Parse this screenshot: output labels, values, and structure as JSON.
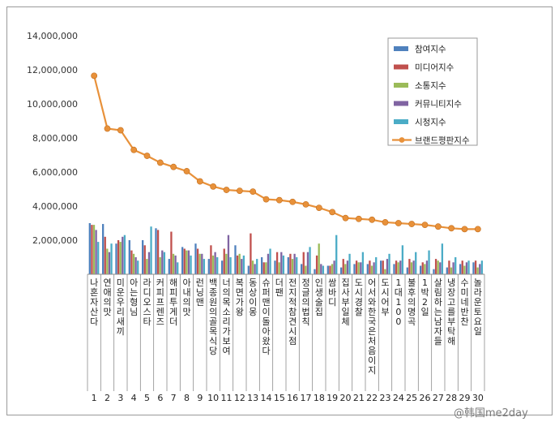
{
  "chart_data": {
    "type": "bar",
    "ylim": [
      0,
      14000000
    ],
    "y_ticks": [
      "14,000,000",
      "12,000,000",
      "10,000,000",
      "8,000,000",
      "6,000,000",
      "4,000,000",
      "2,000,000"
    ],
    "grid": false,
    "legend_position": "top-right",
    "indices": [
      "1",
      "2",
      "3",
      "4",
      "5",
      "6",
      "7",
      "8",
      "9",
      "10",
      "11",
      "12",
      "13",
      "14",
      "15",
      "16",
      "17",
      "18",
      "19",
      "20",
      "21",
      "22",
      "23",
      "24",
      "25",
      "26",
      "27",
      "28",
      "29",
      "30"
    ],
    "categories": [
      "나 혼자 산다",
      "연애의 맛",
      "미운 우리 새끼",
      "아는 형님",
      "라디오스타",
      "커피프렌즈",
      "해피투게더",
      "아내의 맛",
      "런닝맨",
      "백종원의 골목식당",
      "너의 목소리가 보여",
      "복면가왕",
      "동상이몽",
      "슈퍼맨이 돌아왔다",
      "더 팬",
      "전지적 참견 시점",
      "정글의 법칙",
      "인생술집",
      "쌈바디",
      "집사부일체",
      "도시경찰",
      "어서와 한국은 처음이지",
      "도시어부",
      "1대 100",
      "불후의 명곡",
      "1박2일",
      "살림하는 남자들",
      "냉장고를 부탁해",
      "수미네 반찬",
      "놀라운 토요일"
    ],
    "series": [
      {
        "name": "참여지수",
        "color": "#4f81bd",
        "values": [
          3000000,
          2950000,
          1800000,
          2000000,
          2000000,
          2700000,
          900000,
          1600000,
          1800000,
          900000,
          800000,
          1700000,
          500000,
          1000000,
          800000,
          1000000,
          600000,
          300000,
          500000,
          400000,
          600000,
          600000,
          800000,
          600000,
          400000,
          500000,
          300000,
          400000,
          600000,
          700000
        ]
      },
      {
        "name": "미디어지수",
        "color": "#c0504d",
        "values": [
          2900000,
          2200000,
          2000000,
          1400000,
          1700000,
          2600000,
          2500000,
          1500000,
          1500000,
          1700000,
          1500000,
          1100000,
          2400000,
          700000,
          1300000,
          1200000,
          1300000,
          1100000,
          500000,
          900000,
          800000,
          800000,
          800000,
          800000,
          900000,
          700000,
          900000,
          800000,
          800000,
          800000
        ]
      },
      {
        "name": "소통지수",
        "color": "#9bbb59",
        "values": [
          2900000,
          1500000,
          1900000,
          1200000,
          900000,
          1000000,
          1200000,
          1400000,
          1200000,
          1100000,
          1200000,
          1200000,
          800000,
          700000,
          700000,
          900000,
          500000,
          1800000,
          600000,
          600000,
          700000,
          500000,
          300000,
          700000,
          700000,
          600000,
          800000,
          400000,
          500000,
          400000
        ]
      },
      {
        "name": "커뮤니티지수",
        "color": "#8064a2",
        "values": [
          2600000,
          1300000,
          2200000,
          1000000,
          1300000,
          1400000,
          1100000,
          1400000,
          1200000,
          1300000,
          2300000,
          900000,
          600000,
          1200000,
          1300000,
          1200000,
          1300000,
          600000,
          800000,
          800000,
          700000,
          700000,
          900000,
          800000,
          800000,
          800000,
          700000,
          700000,
          700000,
          600000
        ]
      },
      {
        "name": "시청지수",
        "color": "#4bacc6",
        "values": [
          1900000,
          1800000,
          2300000,
          800000,
          2800000,
          1300000,
          700000,
          1100000,
          900000,
          1000000,
          1000000,
          1100000,
          900000,
          1500000,
          1100000,
          1000000,
          1600000,
          500000,
          2300000,
          1200000,
          1300000,
          1000000,
          1200000,
          1700000,
          1300000,
          1400000,
          1800000,
          1000000,
          800000,
          800000
        ]
      }
    ],
    "line_series": {
      "name": "브랜드평판지수",
      "color": "#e8913a",
      "values": [
        11650000,
        8550000,
        8450000,
        7300000,
        6950000,
        6550000,
        6300000,
        6050000,
        5450000,
        5150000,
        4950000,
        4900000,
        4850000,
        4400000,
        4350000,
        4250000,
        4100000,
        3900000,
        3650000,
        3300000,
        3250000,
        3200000,
        3050000,
        3000000,
        2950000,
        2900000,
        2800000,
        2700000,
        2650000,
        2650000
      ]
    }
  },
  "watermark": "@韩国me2day"
}
